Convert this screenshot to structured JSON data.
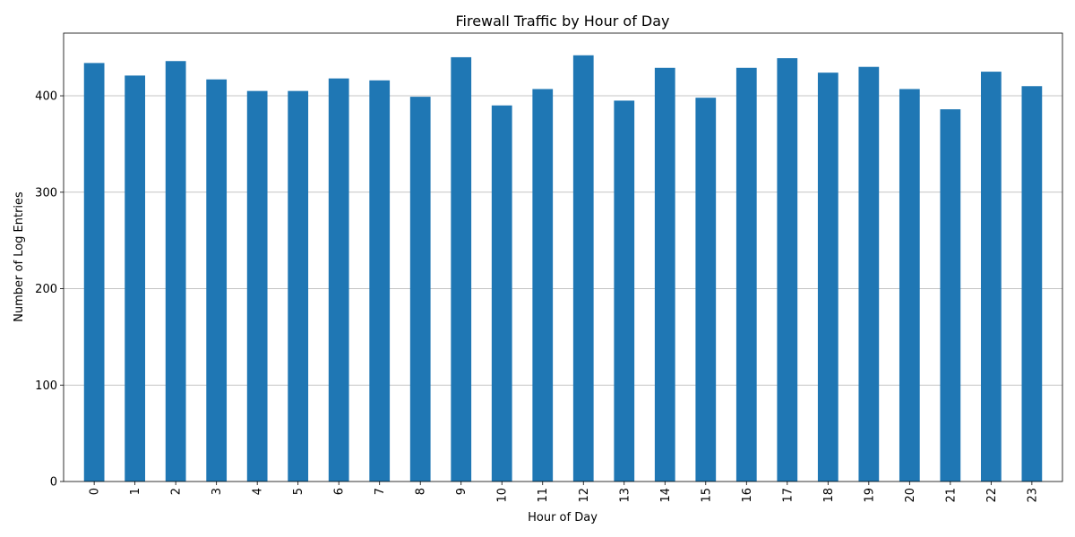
{
  "chart_data": {
    "type": "bar",
    "title": "Firewall Traffic by Hour of Day",
    "xlabel": "Hour of Day",
    "ylabel": "Number of Log Entries",
    "categories": [
      "0",
      "1",
      "2",
      "3",
      "4",
      "5",
      "6",
      "7",
      "8",
      "9",
      "10",
      "11",
      "12",
      "13",
      "14",
      "15",
      "16",
      "17",
      "18",
      "19",
      "20",
      "21",
      "22",
      "23"
    ],
    "values": [
      434,
      421,
      436,
      417,
      405,
      405,
      418,
      416,
      399,
      440,
      390,
      407,
      442,
      395,
      429,
      398,
      429,
      439,
      424,
      430,
      407,
      386,
      425,
      410
    ],
    "ylim": [
      0,
      465
    ],
    "yticks": [
      0,
      100,
      200,
      300,
      400
    ],
    "grid": "y",
    "bar_color": "#1f77b4",
    "xtick_rotation": "vertical"
  }
}
